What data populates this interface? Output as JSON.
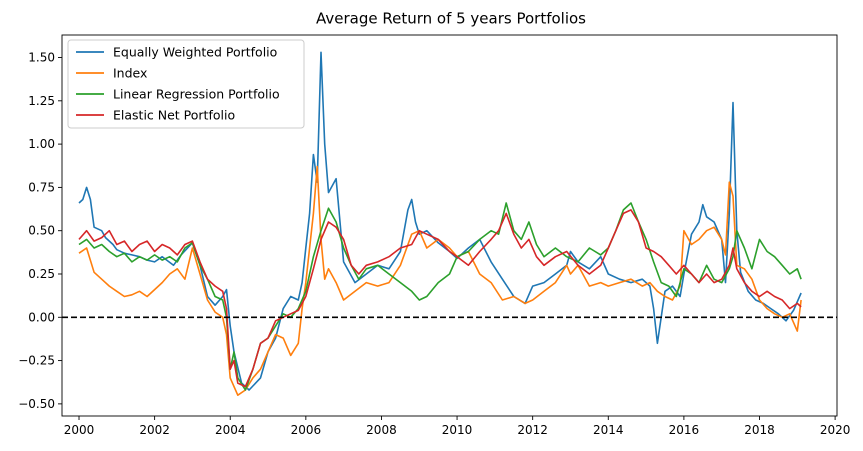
{
  "chart_data": {
    "type": "line",
    "title": "Average Return of 5 years Portfolios",
    "xlabel": "",
    "ylabel": "",
    "xlim": [
      1999.55,
      2020.05
    ],
    "ylim": [
      -0.57,
      1.63
    ],
    "xticks": [
      {
        "value": 2000,
        "label": "2000"
      },
      {
        "value": 2002,
        "label": "2002"
      },
      {
        "value": 2004,
        "label": "2004"
      },
      {
        "value": 2006,
        "label": "2006"
      },
      {
        "value": 2008,
        "label": "2008"
      },
      {
        "value": 2010,
        "label": "2010"
      },
      {
        "value": 2012,
        "label": "2012"
      },
      {
        "value": 2014,
        "label": "2014"
      },
      {
        "value": 2016,
        "label": "2016"
      },
      {
        "value": 2018,
        "label": "2018"
      },
      {
        "value": 2020,
        "label": "2020"
      }
    ],
    "yticks": [
      {
        "value": -0.5,
        "label": "−0.50"
      },
      {
        "value": -0.25,
        "label": "−0.25"
      },
      {
        "value": 0,
        "label": "0.00"
      },
      {
        "value": 0.25,
        "label": "0.25"
      },
      {
        "value": 0.5,
        "label": "0.50"
      },
      {
        "value": 0.75,
        "label": "0.75"
      },
      {
        "value": 1.0,
        "label": "1.00"
      },
      {
        "value": 1.25,
        "label": "1.25"
      },
      {
        "value": 1.5,
        "label": "1.50"
      }
    ],
    "grid": false,
    "legend_position": "top-left",
    "reference_line": {
      "y": 0,
      "style": "dashed",
      "color": "#000000"
    },
    "series": [
      {
        "name": "Equally Weighted Portfolio",
        "color": "#1f77b4",
        "x": [
          2000,
          2000.1,
          2000.2,
          2000.3,
          2000.4,
          2000.6,
          2000.7,
          2000.9,
          2001.0,
          2001.2,
          2001.4,
          2001.6,
          2001.8,
          2002.0,
          2002.2,
          2002.5,
          2002.7,
          2003.0,
          2003.2,
          2003.4,
          2003.6,
          2003.8,
          2003.9,
          2004.0,
          2004.1,
          2004.3,
          2004.5,
          2004.8,
          2005.0,
          2005.2,
          2005.4,
          2005.6,
          2005.8,
          2005.9,
          2006.0,
          2006.1,
          2006.2,
          2006.3,
          2006.4,
          2006.5,
          2006.6,
          2006.8,
          2007.0,
          2007.3,
          2007.6,
          2007.9,
          2008.2,
          2008.5,
          2008.7,
          2008.8,
          2008.9,
          2009.0,
          2009.2,
          2009.5,
          2009.8,
          2010.0,
          2010.3,
          2010.6,
          2010.9,
          2011.2,
          2011.5,
          2011.8,
          2012.0,
          2012.3,
          2012.6,
          2012.9,
          2013.0,
          2013.2,
          2013.5,
          2013.8,
          2014.0,
          2014.3,
          2014.6,
          2014.9,
          2015.1,
          2015.2,
          2015.3,
          2015.5,
          2015.7,
          2015.9,
          2016.0,
          2016.2,
          2016.4,
          2016.5,
          2016.6,
          2016.8,
          2017.0,
          2017.1,
          2017.2,
          2017.3,
          2017.4,
          2017.5,
          2017.7,
          2017.9,
          2018.1,
          2018.3,
          2018.5,
          2018.7,
          2018.9,
          2019.1
        ],
        "values": [
          0.66,
          0.68,
          0.75,
          0.68,
          0.52,
          0.5,
          0.46,
          0.42,
          0.39,
          0.37,
          0.36,
          0.35,
          0.33,
          0.32,
          0.35,
          0.3,
          0.36,
          0.43,
          0.3,
          0.12,
          0.07,
          0.12,
          0.16,
          -0.05,
          -0.2,
          -0.38,
          -0.42,
          -0.35,
          -0.2,
          -0.12,
          0.05,
          0.12,
          0.1,
          0.2,
          0.4,
          0.6,
          0.94,
          0.78,
          1.53,
          1.0,
          0.72,
          0.8,
          0.32,
          0.2,
          0.25,
          0.3,
          0.28,
          0.38,
          0.62,
          0.68,
          0.55,
          0.48,
          0.5,
          0.43,
          0.38,
          0.34,
          0.4,
          0.45,
          0.32,
          0.22,
          0.12,
          0.08,
          0.18,
          0.2,
          0.25,
          0.3,
          0.38,
          0.32,
          0.28,
          0.35,
          0.25,
          0.22,
          0.2,
          0.22,
          0.18,
          0.05,
          -0.15,
          0.15,
          0.18,
          0.12,
          0.25,
          0.48,
          0.55,
          0.65,
          0.58,
          0.55,
          0.45,
          0.2,
          0.6,
          1.24,
          0.5,
          0.26,
          0.15,
          0.1,
          0.08,
          0.05,
          0.02,
          -0.02,
          0.04,
          0.14
        ]
      },
      {
        "name": "Index",
        "color": "#ff7f0e",
        "x": [
          2000,
          2000.2,
          2000.4,
          2000.6,
          2000.8,
          2001.0,
          2001.2,
          2001.4,
          2001.6,
          2001.8,
          2002.0,
          2002.2,
          2002.4,
          2002.6,
          2002.8,
          2003.0,
          2003.2,
          2003.4,
          2003.6,
          2003.8,
          2003.9,
          2004.0,
          2004.1,
          2004.2,
          2004.4,
          2004.6,
          2004.8,
          2005.0,
          2005.2,
          2005.4,
          2005.6,
          2005.8,
          2005.9,
          2006.0,
          2006.1,
          2006.2,
          2006.3,
          2006.4,
          2006.5,
          2006.6,
          2006.8,
          2007.0,
          2007.3,
          2007.6,
          2007.9,
          2008.2,
          2008.5,
          2008.8,
          2009.0,
          2009.2,
          2009.5,
          2009.8,
          2010.0,
          2010.3,
          2010.6,
          2010.9,
          2011.2,
          2011.5,
          2011.8,
          2012.0,
          2012.3,
          2012.6,
          2012.9,
          2013.0,
          2013.2,
          2013.5,
          2013.8,
          2014.0,
          2014.3,
          2014.6,
          2014.9,
          2015.1,
          2015.3,
          2015.5,
          2015.7,
          2015.9,
          2016.0,
          2016.2,
          2016.4,
          2016.6,
          2016.8,
          2017.0,
          2017.1,
          2017.2,
          2017.3,
          2017.4,
          2017.6,
          2017.8,
          2018.0,
          2018.2,
          2018.4,
          2018.6,
          2018.8,
          2019.0,
          2019.1
        ],
        "values": [
          0.37,
          0.4,
          0.26,
          0.22,
          0.18,
          0.15,
          0.12,
          0.13,
          0.15,
          0.12,
          0.16,
          0.2,
          0.25,
          0.28,
          0.22,
          0.4,
          0.25,
          0.1,
          0.03,
          0.0,
          -0.1,
          -0.35,
          -0.4,
          -0.45,
          -0.42,
          -0.35,
          -0.3,
          -0.2,
          -0.1,
          -0.12,
          -0.22,
          -0.15,
          0.05,
          0.2,
          0.4,
          0.6,
          0.87,
          0.45,
          0.22,
          0.28,
          0.2,
          0.1,
          0.15,
          0.2,
          0.18,
          0.2,
          0.3,
          0.48,
          0.5,
          0.4,
          0.45,
          0.4,
          0.35,
          0.38,
          0.25,
          0.2,
          0.1,
          0.12,
          0.08,
          0.1,
          0.15,
          0.2,
          0.3,
          0.25,
          0.3,
          0.18,
          0.2,
          0.18,
          0.2,
          0.22,
          0.18,
          0.2,
          0.15,
          0.12,
          0.1,
          0.18,
          0.5,
          0.42,
          0.45,
          0.5,
          0.52,
          0.45,
          0.36,
          0.78,
          0.7,
          0.3,
          0.28,
          0.22,
          0.1,
          0.05,
          0.02,
          0.0,
          0.02,
          -0.08,
          0.1
        ]
      },
      {
        "name": "Linear Regression Portfolio",
        "color": "#2ca02c",
        "x": [
          2000,
          2000.2,
          2000.4,
          2000.6,
          2000.8,
          2001.0,
          2001.2,
          2001.4,
          2001.6,
          2001.8,
          2002.0,
          2002.2,
          2002.4,
          2002.6,
          2002.8,
          2003.0,
          2003.2,
          2003.4,
          2003.6,
          2003.8,
          2003.9,
          2004.0,
          2004.1,
          2004.2,
          2004.4,
          2004.6,
          2004.8,
          2005.0,
          2005.2,
          2005.4,
          2005.6,
          2005.8,
          2006.0,
          2006.2,
          2006.4,
          2006.6,
          2006.8,
          2007.0,
          2007.2,
          2007.4,
          2007.6,
          2007.9,
          2008.2,
          2008.5,
          2008.8,
          2009.0,
          2009.2,
          2009.5,
          2009.8,
          2010.0,
          2010.3,
          2010.6,
          2010.9,
          2011.1,
          2011.3,
          2011.5,
          2011.7,
          2011.9,
          2012.1,
          2012.3,
          2012.6,
          2012.9,
          2013.2,
          2013.5,
          2013.8,
          2014.0,
          2014.2,
          2014.4,
          2014.6,
          2014.8,
          2015.0,
          2015.2,
          2015.4,
          2015.6,
          2015.8,
          2016.0,
          2016.2,
          2016.4,
          2016.6,
          2016.8,
          2017.0,
          2017.2,
          2017.3,
          2017.4,
          2017.6,
          2017.8,
          2018.0,
          2018.2,
          2018.4,
          2018.6,
          2018.8,
          2019.0,
          2019.1
        ],
        "values": [
          0.42,
          0.45,
          0.4,
          0.42,
          0.38,
          0.35,
          0.37,
          0.32,
          0.35,
          0.33,
          0.36,
          0.33,
          0.35,
          0.32,
          0.4,
          0.43,
          0.3,
          0.22,
          0.12,
          0.1,
          0.0,
          -0.3,
          -0.2,
          -0.35,
          -0.42,
          -0.3,
          -0.15,
          -0.12,
          -0.05,
          0.02,
          0.0,
          0.05,
          0.15,
          0.35,
          0.5,
          0.63,
          0.55,
          0.4,
          0.3,
          0.22,
          0.28,
          0.3,
          0.25,
          0.2,
          0.15,
          0.1,
          0.12,
          0.2,
          0.25,
          0.35,
          0.38,
          0.45,
          0.5,
          0.48,
          0.66,
          0.5,
          0.45,
          0.55,
          0.42,
          0.35,
          0.4,
          0.35,
          0.32,
          0.4,
          0.36,
          0.4,
          0.5,
          0.62,
          0.66,
          0.55,
          0.45,
          0.32,
          0.2,
          0.18,
          0.12,
          0.28,
          0.25,
          0.2,
          0.3,
          0.22,
          0.2,
          0.28,
          0.35,
          0.5,
          0.4,
          0.28,
          0.45,
          0.38,
          0.35,
          0.3,
          0.25,
          0.28,
          0.22
        ]
      },
      {
        "name": "Elastic Net Portfolio",
        "color": "#d62728",
        "x": [
          2000,
          2000.2,
          2000.4,
          2000.6,
          2000.8,
          2001.0,
          2001.2,
          2001.4,
          2001.6,
          2001.8,
          2002.0,
          2002.2,
          2002.4,
          2002.6,
          2002.8,
          2003.0,
          2003.2,
          2003.4,
          2003.6,
          2003.8,
          2003.9,
          2004.0,
          2004.1,
          2004.2,
          2004.4,
          2004.6,
          2004.8,
          2005.0,
          2005.2,
          2005.4,
          2005.6,
          2005.8,
          2006.0,
          2006.2,
          2006.4,
          2006.6,
          2006.8,
          2007.0,
          2007.2,
          2007.4,
          2007.6,
          2007.9,
          2008.2,
          2008.5,
          2008.8,
          2009.0,
          2009.2,
          2009.5,
          2009.8,
          2010.0,
          2010.3,
          2010.6,
          2010.9,
          2011.1,
          2011.3,
          2011.5,
          2011.7,
          2011.9,
          2012.1,
          2012.3,
          2012.6,
          2012.9,
          2013.2,
          2013.5,
          2013.8,
          2014.0,
          2014.2,
          2014.4,
          2014.6,
          2014.8,
          2015.0,
          2015.2,
          2015.4,
          2015.6,
          2015.8,
          2016.0,
          2016.2,
          2016.4,
          2016.6,
          2016.8,
          2017.0,
          2017.2,
          2017.3,
          2017.4,
          2017.6,
          2017.8,
          2018.0,
          2018.2,
          2018.4,
          2018.6,
          2018.8,
          2019.0,
          2019.1
        ],
        "values": [
          0.45,
          0.5,
          0.44,
          0.46,
          0.5,
          0.42,
          0.44,
          0.38,
          0.42,
          0.44,
          0.38,
          0.42,
          0.4,
          0.36,
          0.42,
          0.44,
          0.32,
          0.22,
          0.18,
          0.15,
          0.05,
          -0.3,
          -0.25,
          -0.38,
          -0.4,
          -0.3,
          -0.15,
          -0.12,
          -0.02,
          0.0,
          0.02,
          0.04,
          0.12,
          0.28,
          0.45,
          0.55,
          0.52,
          0.45,
          0.3,
          0.25,
          0.3,
          0.32,
          0.35,
          0.4,
          0.42,
          0.5,
          0.48,
          0.45,
          0.38,
          0.35,
          0.3,
          0.38,
          0.45,
          0.5,
          0.6,
          0.48,
          0.4,
          0.45,
          0.35,
          0.3,
          0.35,
          0.38,
          0.3,
          0.25,
          0.3,
          0.4,
          0.5,
          0.6,
          0.62,
          0.55,
          0.4,
          0.38,
          0.35,
          0.3,
          0.25,
          0.3,
          0.25,
          0.2,
          0.25,
          0.2,
          0.22,
          0.3,
          0.4,
          0.28,
          0.2,
          0.15,
          0.12,
          0.15,
          0.12,
          0.1,
          0.05,
          0.08,
          0.06
        ]
      }
    ]
  }
}
